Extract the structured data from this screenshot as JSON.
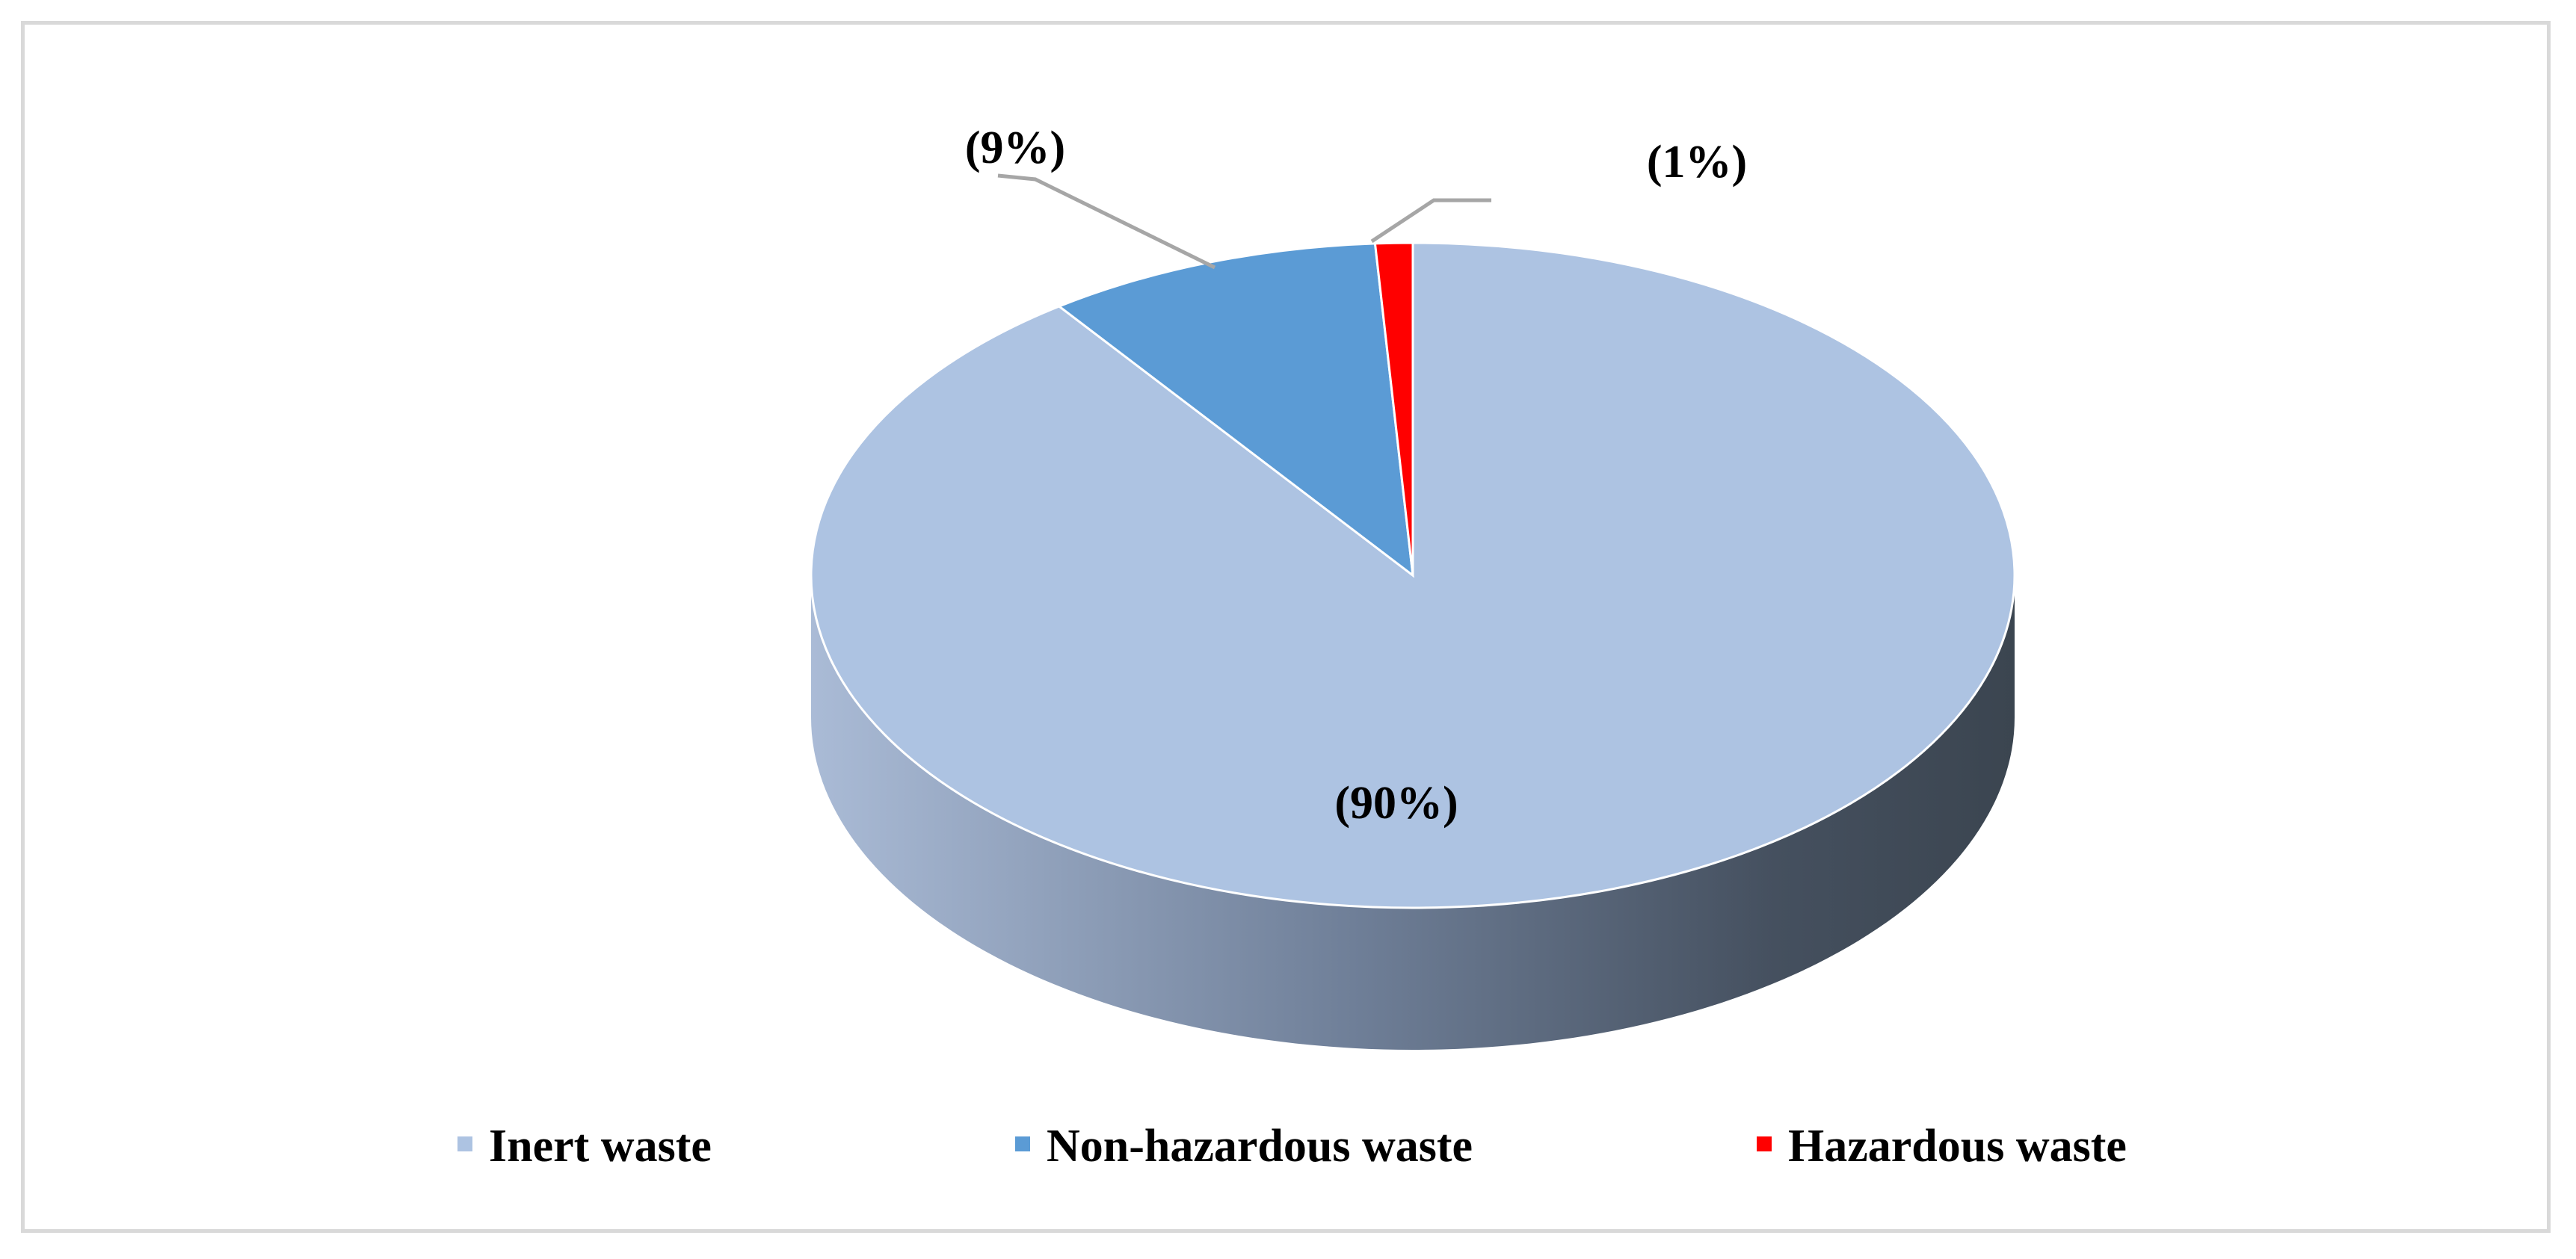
{
  "chart_data": {
    "type": "pie",
    "style": "3d",
    "title": "",
    "categories": [
      "Inert waste",
      "Non-hazardous waste",
      "Hazardous waste"
    ],
    "values": [
      90,
      9,
      1
    ],
    "data_labels": [
      "(90%)",
      "(9%)",
      "(1%)"
    ],
    "colors": [
      "#adc3e2",
      "#5b9bd5",
      "#ff0000"
    ],
    "legend": {
      "position": "bottom"
    }
  }
}
